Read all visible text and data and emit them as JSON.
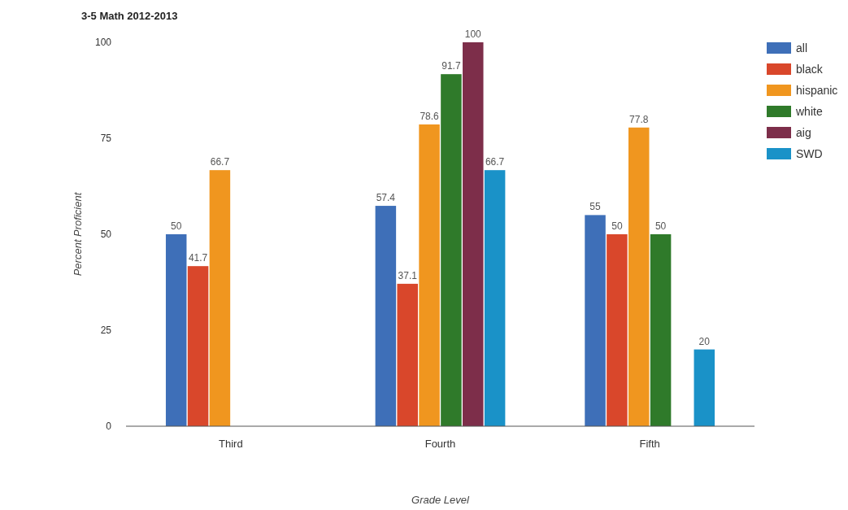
{
  "chart_data": {
    "type": "bar",
    "title": "3-5 Math 2012-2013",
    "xlabel": "Grade Level",
    "ylabel": "Percent Proficient",
    "categories": [
      "Third",
      "Fourth",
      "Fifth"
    ],
    "series": [
      {
        "name": "all",
        "color": "#3e6fb8",
        "values": [
          50,
          57.4,
          55
        ]
      },
      {
        "name": "black",
        "color": "#d9472b",
        "values": [
          41.7,
          37.1,
          50
        ]
      },
      {
        "name": "hispanic",
        "color": "#f0961f",
        "values": [
          66.7,
          78.6,
          77.8
        ]
      },
      {
        "name": "white",
        "color": "#2f7a2a",
        "values": [
          null,
          91.7,
          50
        ]
      },
      {
        "name": "aig",
        "color": "#7d2e4a",
        "values": [
          null,
          100,
          null
        ]
      },
      {
        "name": "SWD",
        "color": "#1a92c8",
        "values": [
          null,
          66.7,
          20
        ]
      }
    ],
    "ylim": [
      0,
      100
    ],
    "yticks": [
      0,
      25,
      50,
      75,
      100
    ],
    "data_labels": true,
    "legend": "top right"
  }
}
